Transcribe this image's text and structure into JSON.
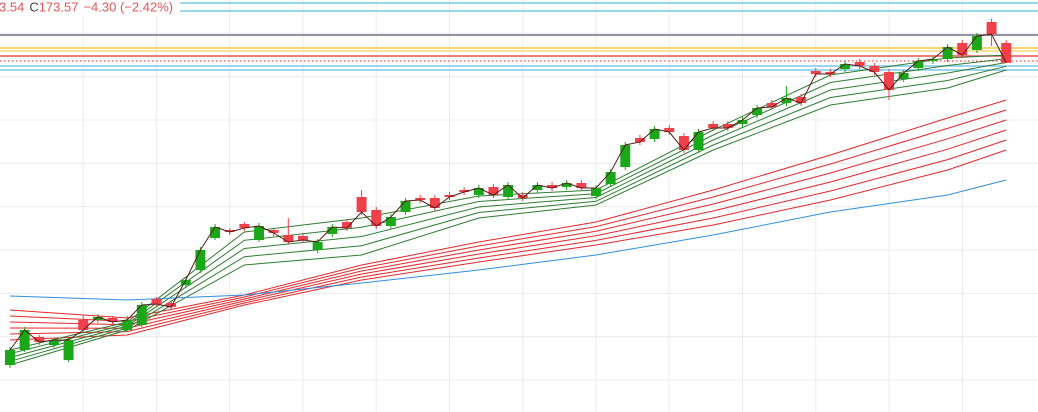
{
  "chart_data": {
    "type": "candlestick",
    "ohlc_label": {
      "low_tail": "3.54",
      "close_key": "C",
      "change": "−4.30 (−2.42%)"
    },
    "up_color": "#1aa81a",
    "down_color": "#f0404a",
    "close_line_color": "#5a1a1a",
    "xlim": [
      -0.68,
      70.17
    ],
    "ylim": [
      121.2,
      183
    ],
    "yticks": [
      126,
      132.5,
      139,
      145.5,
      152,
      158.5,
      165,
      171.5,
      178
    ],
    "xticks": [
      5,
      10,
      15,
      20,
      25,
      30,
      35,
      40,
      45,
      50,
      55,
      60,
      65
    ],
    "grid": true,
    "open": [
      128.25,
      130.5,
      132.45,
      131.25,
      129,
      135,
      135,
      135.3,
      133.5,
      134.25,
      138.15,
      137.55,
      140.25,
      142.5,
      147.3,
      148.5,
      149.4,
      147,
      148.5,
      147.75,
      147.6,
      145.5,
      147.9,
      149.7,
      153.45,
      151.5,
      149.1,
      151.2,
      153.3,
      153.3,
      153.75,
      154.5,
      153.75,
      154.95,
      153.45,
      153.75,
      154.5,
      155.25,
      154.95,
      155.55,
      153.6,
      155.4,
      157.95,
      162.3,
      162.15,
      163.8,
      162.6,
      160.5,
      164.4,
      164.4,
      164.4,
      165.75,
      167.55,
      167.55,
      168.45,
      172.35,
      172.2,
      172.65,
      173.7,
      173.1,
      172.2,
      171.15,
      172.8,
      173.85,
      174.15,
      176.55,
      175.5,
      179.7,
      176.55
    ],
    "high": [
      130.95,
      133.95,
      132.75,
      132.3,
      132.3,
      135.6,
      135.9,
      135.6,
      135.6,
      137.7,
      138.45,
      138,
      141.45,
      145.95,
      149.4,
      148.8,
      149.7,
      149.55,
      148.8,
      150.3,
      148.05,
      147.15,
      149.4,
      150.15,
      154.5,
      151.95,
      150.9,
      153.3,
      153.75,
      153.75,
      154.2,
      154.95,
      155.25,
      155.4,
      155.7,
      154.2,
      155.7,
      155.7,
      156,
      156,
      155.25,
      157.65,
      161.7,
      162.75,
      164.1,
      164.25,
      163.05,
      163.65,
      164.85,
      164.85,
      165.45,
      167.25,
      168,
      170.1,
      168.9,
      172.8,
      172.65,
      173.85,
      174.15,
      173.55,
      172.65,
      172.5,
      174.3,
      174.6,
      176.4,
      177,
      178.05,
      180.15,
      177
    ],
    "low": [
      127.8,
      130.2,
      131.25,
      130.8,
      128.7,
      133.2,
      134.55,
      134.25,
      133.2,
      133.95,
      136.95,
      136.5,
      139.8,
      142.05,
      147,
      147.75,
      148.35,
      146.7,
      147.6,
      146.4,
      146.55,
      145.05,
      147.45,
      148.35,
      150.75,
      148.65,
      148.65,
      150.75,
      152.55,
      151.35,
      153,
      153.75,
      153.3,
      153.3,
      153,
      152.85,
      154.05,
      154.35,
      154.5,
      154.35,
      153.15,
      154.95,
      157.5,
      161.25,
      161.7,
      162.75,
      160.05,
      160.05,
      163.35,
      163.35,
      163.95,
      165.3,
      166.5,
      167.1,
      167.1,
      171.45,
      171.45,
      172.2,
      172.65,
      171.75,
      168,
      170.7,
      172.35,
      173.4,
      173.7,
      174.3,
      175.05,
      176.1,
      173.54
    ],
    "close": [
      130.5,
      133.5,
      131.7,
      132,
      132,
      133.5,
      135.45,
      134.7,
      135,
      137.25,
      137.4,
      136.95,
      141,
      145.5,
      148.95,
      148.2,
      148.8,
      149.1,
      148.05,
      146.7,
      147,
      146.7,
      148.95,
      148.8,
      151.2,
      149.1,
      150.45,
      152.85,
      153,
      151.8,
      153.45,
      154.2,
      154.8,
      153.75,
      155.25,
      153.3,
      155.25,
      154.8,
      155.55,
      154.8,
      154.8,
      157.2,
      161.25,
      161.7,
      163.65,
      163.2,
      160.5,
      163.2,
      163.8,
      163.8,
      165,
      166.8,
      166.95,
      168.3,
      167.55,
      171.9,
      171.9,
      173.4,
      173.1,
      172.2,
      169.5,
      172.05,
      173.85,
      174.15,
      175.95,
      174.75,
      177.6,
      177.87,
      173.57
    ],
    "levels": [
      {
        "value": 182.55,
        "color": "#7cc8e8"
      },
      {
        "value": 181.35,
        "color": "#7cc8e8"
      },
      {
        "value": 177.75,
        "color": "#707082"
      },
      {
        "value": 175.8,
        "color": "#f5c842"
      },
      {
        "value": 175.35,
        "color": "#f8d878"
      },
      {
        "value": 174.6,
        "color": "#e85050"
      },
      {
        "value": 173.85,
        "color": "#e85050",
        "style": "dotted"
      },
      {
        "value": 173.1,
        "color": "#7cc8e8"
      },
      {
        "value": 172.5,
        "color": "#7cc8e8"
      }
    ],
    "series": [
      {
        "color": "#e8262a",
        "x": [
          0,
          8,
          16,
          24,
          32,
          40,
          48,
          56,
          64,
          68
        ],
        "values": [
          136.5,
          135.3,
          138.75,
          143.25,
          146.7,
          149.7,
          154.5,
          159.75,
          165.3,
          168
        ]
      },
      {
        "color": "#e8262a",
        "x": [
          0,
          8,
          16,
          24,
          32,
          40,
          48,
          56,
          64,
          68
        ],
        "values": [
          135.6,
          134.79,
          138.45,
          142.8,
          146.1,
          149.01,
          153.45,
          158.4,
          163.74,
          166.5
        ]
      },
      {
        "color": "#e8262a",
        "x": [
          0,
          8,
          16,
          24,
          32,
          40,
          48,
          56,
          64,
          68
        ],
        "values": [
          134.7,
          134.28,
          138.15,
          142.35,
          145.5,
          148.32,
          152.4,
          157.05,
          162.18,
          165
        ]
      },
      {
        "color": "#e8262a",
        "x": [
          0,
          8,
          16,
          24,
          32,
          40,
          48,
          56,
          64,
          68
        ],
        "values": [
          133.8,
          133.77,
          137.85,
          141.9,
          144.9,
          147.63,
          151.35,
          155.7,
          160.62,
          163.5
        ]
      },
      {
        "color": "#e8262a",
        "x": [
          0,
          8,
          16,
          24,
          32,
          40,
          48,
          56,
          64,
          68
        ],
        "values": [
          132.9,
          133.26,
          137.55,
          141.45,
          144.3,
          146.94,
          150.3,
          154.35,
          159.06,
          162
        ]
      },
      {
        "color": "#e8262a",
        "x": [
          0,
          8,
          16,
          24,
          32,
          40,
          48,
          56,
          64,
          68
        ],
        "values": [
          132,
          132.75,
          137.25,
          141,
          143.7,
          146.25,
          149.25,
          153,
          157.5,
          160.5
        ]
      },
      {
        "color": "#2e7d32",
        "x": [
          0,
          8,
          16,
          24,
          32,
          40,
          48,
          56,
          64,
          68
        ],
        "values": [
          130.5,
          134.7,
          148.2,
          150.3,
          153.6,
          154.5,
          163.5,
          171.75,
          174.3,
          174.75
        ]
      },
      {
        "color": "#2e7d32",
        "x": [
          0,
          8,
          16,
          24,
          32,
          40,
          48,
          56,
          64,
          68
        ],
        "values": [
          129.94,
          134.4,
          146.96,
          148.91,
          152.78,
          153.94,
          162.75,
          170.63,
          173.18,
          174.19
        ]
      },
      {
        "color": "#2e7d32",
        "x": [
          0,
          8,
          16,
          24,
          32,
          40,
          48,
          56,
          64,
          68
        ],
        "values": [
          129.38,
          134.1,
          145.73,
          147.53,
          151.95,
          153.38,
          162,
          169.5,
          172.05,
          173.63
        ]
      },
      {
        "color": "#2e7d32",
        "x": [
          0,
          8,
          16,
          24,
          32,
          40,
          48,
          56,
          64,
          68
        ],
        "values": [
          128.81,
          133.8,
          144.49,
          146.14,
          151.13,
          152.81,
          161.25,
          168.38,
          170.93,
          173.06
        ]
      },
      {
        "color": "#2e7d32",
        "x": [
          0,
          8,
          16,
          24,
          32,
          40,
          48,
          56,
          64,
          68
        ],
        "values": [
          128.25,
          133.5,
          143.25,
          144.75,
          150.3,
          152.25,
          160.5,
          167.25,
          169.8,
          172.5
        ]
      },
      {
        "color": "#2f8fe0",
        "x": [
          0,
          8,
          16,
          24,
          32,
          40,
          48,
          56,
          64,
          68
        ],
        "values": [
          138.6,
          138,
          138.75,
          140.55,
          142.5,
          144.75,
          147.75,
          151.2,
          153.75,
          156
        ]
      }
    ]
  }
}
